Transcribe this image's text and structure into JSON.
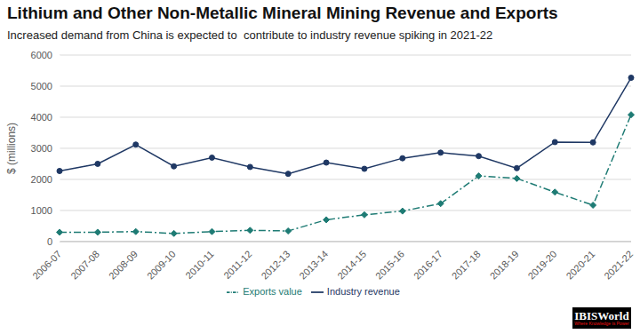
{
  "chart_data": {
    "type": "line",
    "title": "Lithium and Other Non-Metallic Mineral Mining Revenue and Exports",
    "subtitle": "Increased demand from China is expected to  contribute to industry revenue spiking in 2021-22",
    "y_label": "$ (millions)",
    "logo": "IBISWorld",
    "logo_tagline": "Where Knowledge is Power",
    "categories": [
      "2006-07",
      "2007-08",
      "2008-09",
      "2009-10",
      "2010-11",
      "2011-12",
      "2012-13",
      "2013-14",
      "2014-15",
      "2015-16",
      "2016-17",
      "2017-18",
      "2018-19",
      "2019-20",
      "2020-21",
      "2021-22"
    ],
    "series": [
      {
        "name": "Industry revenue",
        "color": "#1f3864",
        "marker": "circle",
        "line_style": "solid",
        "values": [
          2270,
          2500,
          3120,
          2420,
          2700,
          2400,
          2180,
          2540,
          2340,
          2680,
          2860,
          2750,
          2360,
          3200,
          3190,
          5270
        ]
      },
      {
        "name": "Exports value",
        "color": "#1e7b74",
        "marker": "diamond",
        "line_style": "dashdot",
        "values": [
          300,
          300,
          320,
          260,
          320,
          360,
          340,
          700,
          860,
          980,
          1220,
          2110,
          2030,
          1590,
          1170,
          4080
        ]
      }
    ],
    "ylim": [
      0,
      6000
    ],
    "yticks": [
      0,
      1000,
      2000,
      3000,
      4000,
      5000,
      6000
    ],
    "grid": true,
    "legend": "bottom"
  }
}
